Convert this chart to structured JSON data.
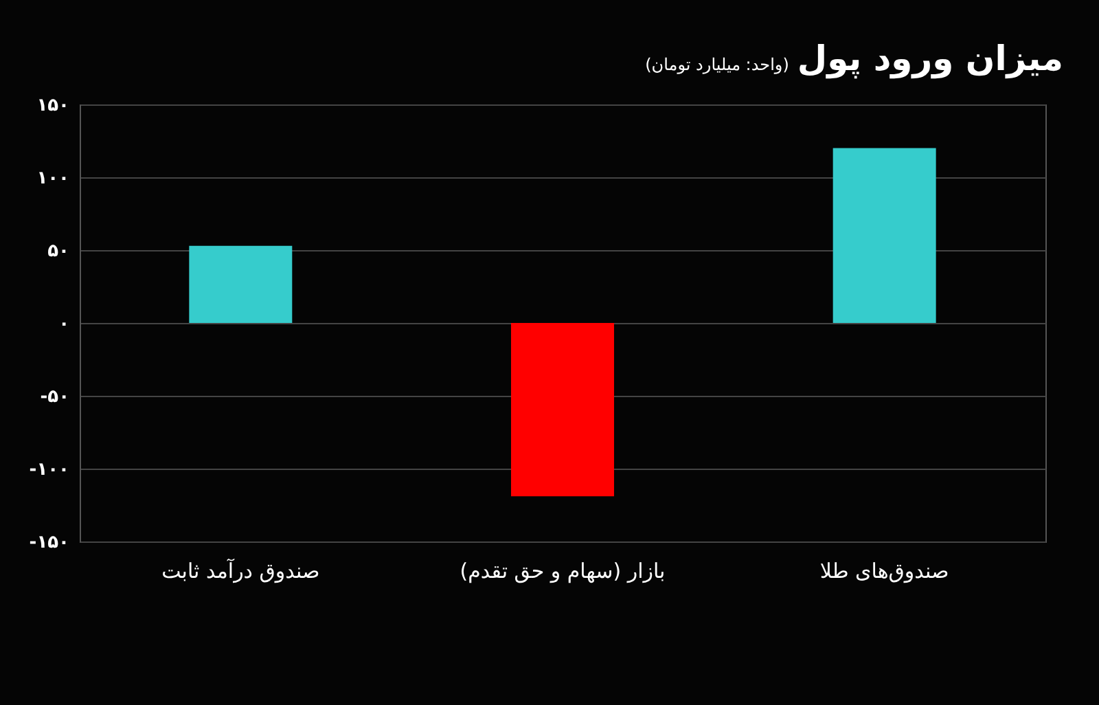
{
  "chart_data": {
    "type": "bar",
    "title": "میزان ورود پول",
    "subtitle": "(واحد: میلیارد تومان)",
    "categories": [
      "صندوق درآمد ثابت",
      "بازار (سهام و حق تقدم)",
      "صندوق‌های طلا"
    ],
    "values": [
      53,
      -119,
      120
    ],
    "colors": [
      "#36cccc",
      "#ff0000",
      "#36cccc"
    ],
    "ylim": [
      -150,
      150
    ],
    "yticks": [
      {
        "value": -150,
        "label": "-۱۵۰"
      },
      {
        "value": -100,
        "label": "-۱۰۰"
      },
      {
        "value": -50,
        "label": "-۵۰"
      },
      {
        "value": 0,
        "label": "۰"
      },
      {
        "value": 50,
        "label": "۵۰"
      },
      {
        "value": 100,
        "label": "۱۰۰"
      },
      {
        "value": 150,
        "label": "۱۵۰"
      }
    ],
    "grid": "y"
  }
}
